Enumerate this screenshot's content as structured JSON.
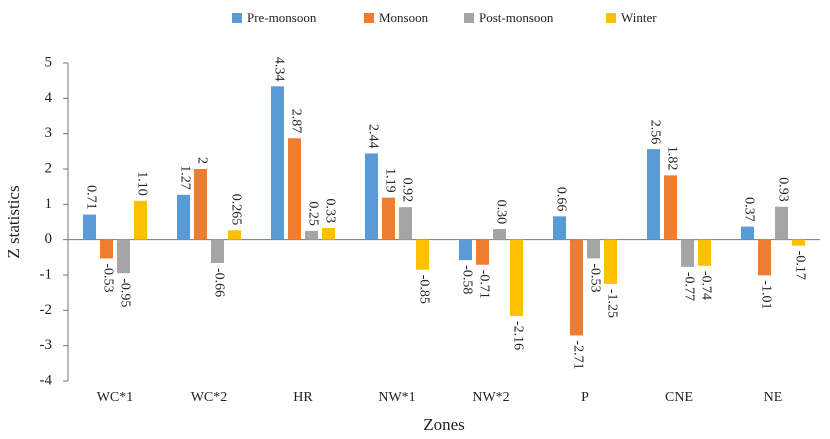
{
  "chart_data": {
    "type": "bar",
    "x_label": "Zones",
    "y_label": "Z statistics",
    "categories": [
      "WC*1",
      "WC*2",
      "HR",
      "NW*1",
      "NW*2",
      "P",
      "CNE",
      "NE"
    ],
    "series": [
      {
        "name": "Pre-monsoon",
        "color": "#5b9bd5",
        "values": [
          0.71,
          1.27,
          4.34,
          2.44,
          -0.58,
          0.66,
          2.56,
          0.37
        ],
        "value_labels": [
          "0.71",
          "1.27",
          "4.34",
          "2.44",
          "-0.58",
          "0.66",
          "2.56",
          "0.37"
        ]
      },
      {
        "name": "Monsoon",
        "color": "#ed7d31",
        "values": [
          -0.53,
          2,
          2.87,
          1.19,
          -0.71,
          -2.71,
          1.82,
          -1.01
        ],
        "value_labels": [
          "-0.53",
          "2",
          "2.87",
          "1.19",
          "-0.71",
          "-2.71",
          "1.82",
          "-1.01"
        ]
      },
      {
        "name": "Post-monsoon",
        "color": "#a5a5a5",
        "values": [
          -0.95,
          -0.66,
          0.25,
          0.92,
          0.3,
          -0.53,
          -0.77,
          0.93
        ],
        "value_labels": [
          "-0.95",
          "-0.66",
          "0.25",
          "0.92",
          "0.30",
          "-0.53",
          "-0.77",
          "0.93"
        ]
      },
      {
        "name": "Winter",
        "color": "#ffc000",
        "values": [
          1.1,
          0.265,
          0.33,
          -0.85,
          -2.16,
          -1.25,
          -0.74,
          -0.17
        ],
        "value_labels": [
          "1.10",
          "0.265",
          "0.33",
          "-0.85",
          "-2.16",
          "-1.25",
          "-0.74",
          "-0.17"
        ]
      }
    ],
    "ylim": [
      -4,
      5
    ],
    "yticks": [
      -4,
      -3,
      -2,
      -1,
      0,
      1,
      2,
      3,
      4,
      5
    ],
    "grid": false,
    "legend": "top"
  }
}
